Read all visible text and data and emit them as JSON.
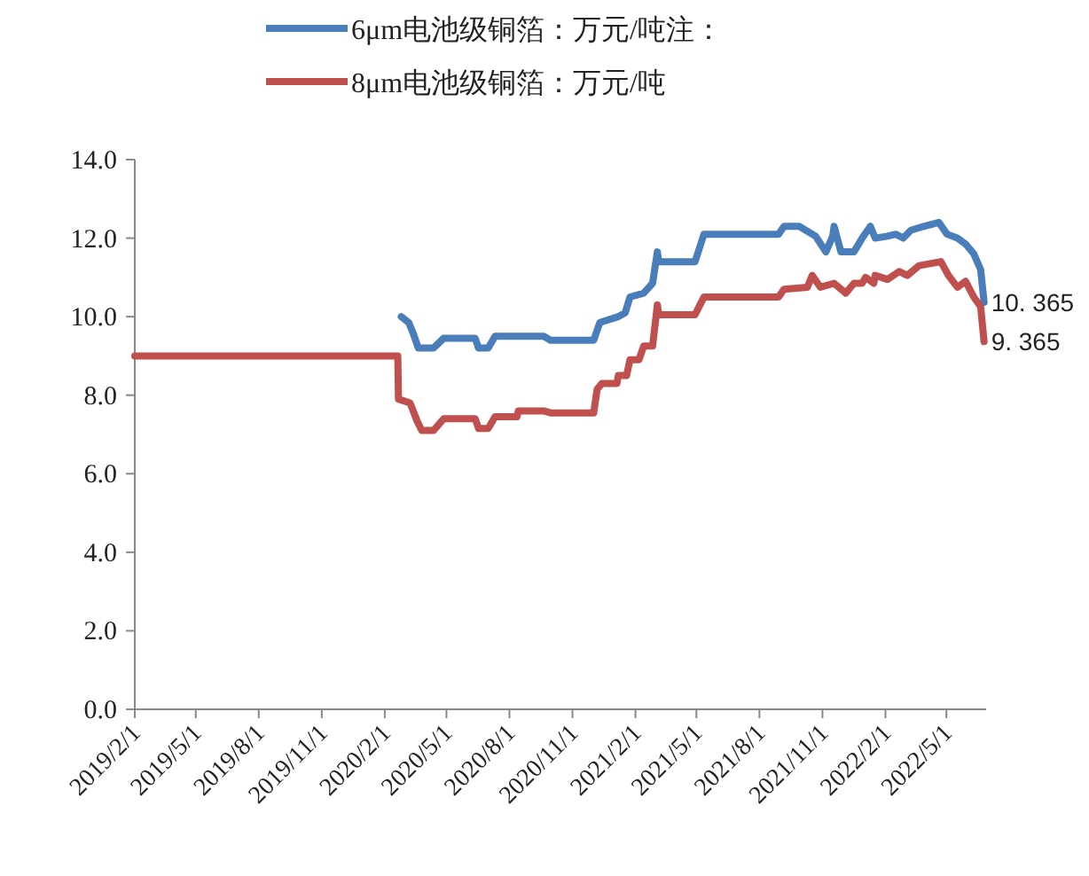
{
  "chart_data": {
    "type": "line",
    "legend": "top",
    "grid": false,
    "line_style": "solid",
    "marker": "none",
    "xlim": [
      "2019-02-01",
      "2022-06-28"
    ],
    "xticks": [
      {
        "value": "2019-02-01",
        "label": "2019/2/1"
      },
      {
        "value": "2019-05-01",
        "label": "2019/5/1"
      },
      {
        "value": "2019-08-01",
        "label": "2019/8/1"
      },
      {
        "value": "2019-11-01",
        "label": "2019/11/1"
      },
      {
        "value": "2020-02-01",
        "label": "2020/2/1"
      },
      {
        "value": "2020-05-01",
        "label": "2020/5/1"
      },
      {
        "value": "2020-08-01",
        "label": "2020/8/1"
      },
      {
        "value": "2020-11-01",
        "label": "2020/11/1"
      },
      {
        "value": "2021-02-01",
        "label": "2021/2/1"
      },
      {
        "value": "2021-05-01",
        "label": "2021/5/1"
      },
      {
        "value": "2021-08-01",
        "label": "2021/8/1"
      },
      {
        "value": "2021-11-01",
        "label": "2021/11/1"
      },
      {
        "value": "2022-02-01",
        "label": "2022/2/1"
      },
      {
        "value": "2022-05-01",
        "label": "2022/5/1"
      }
    ],
    "ylim": [
      0,
      14
    ],
    "yticks": [
      {
        "value": 0,
        "label": "0.0"
      },
      {
        "value": 2,
        "label": "2.0"
      },
      {
        "value": 4,
        "label": "4.0"
      },
      {
        "value": 6,
        "label": "6.0"
      },
      {
        "value": 8,
        "label": "8.0"
      },
      {
        "value": 10,
        "label": "10.0"
      },
      {
        "value": 12,
        "label": "12.0"
      },
      {
        "value": 14,
        "label": "14.0"
      }
    ],
    "series": [
      {
        "name": "6μm电池级铜箔：万元/吨注：",
        "color": "#4a7ebb",
        "x": [
          "2020-02-25",
          "2020-03-07",
          "2020-03-14",
          "2020-03-21",
          "2020-04-12",
          "2020-04-27",
          "2020-06-12",
          "2020-06-17",
          "2020-07-01",
          "2020-07-11",
          "2020-09-20",
          "2020-09-30",
          "2020-12-02",
          "2020-12-11",
          "2021-01-07",
          "2021-01-17",
          "2021-01-24",
          "2021-02-13",
          "2021-02-26",
          "2021-03-05",
          "2021-03-07",
          "2021-04-29",
          "2021-05-12",
          "2021-08-29",
          "2021-09-06",
          "2021-09-28",
          "2021-10-22",
          "2021-11-06",
          "2021-11-16",
          "2021-11-18",
          "2021-11-28",
          "2021-12-17",
          "2021-12-29",
          "2022-01-10",
          "2022-01-17",
          "2022-02-04",
          "2022-02-16",
          "2022-02-27",
          "2022-03-10",
          "2022-03-29",
          "2022-04-20",
          "2022-05-02",
          "2022-05-17",
          "2022-05-29",
          "2022-06-10",
          "2022-06-20",
          "2022-06-25"
        ],
        "values": [
          10.0,
          9.85,
          9.55,
          9.2,
          9.2,
          9.45,
          9.45,
          9.2,
          9.2,
          9.5,
          9.5,
          9.4,
          9.4,
          9.85,
          10.0,
          10.1,
          10.5,
          10.6,
          10.85,
          11.65,
          11.4,
          11.4,
          12.1,
          12.1,
          12.3,
          12.3,
          12.05,
          11.65,
          12.05,
          12.3,
          11.65,
          11.65,
          12.0,
          12.3,
          12.0,
          12.05,
          12.1,
          12.0,
          12.2,
          12.3,
          12.4,
          12.1,
          12.0,
          11.85,
          11.6,
          11.2,
          10.365
        ],
        "value_labels": [
          null,
          null,
          null,
          null,
          null,
          null,
          null,
          null,
          null,
          null,
          null,
          null,
          null,
          null,
          null,
          null,
          null,
          null,
          null,
          null,
          null,
          null,
          null,
          null,
          null,
          null,
          null,
          null,
          null,
          null,
          null,
          null,
          null,
          null,
          null,
          null,
          null,
          null,
          null,
          null,
          null,
          null,
          null,
          null,
          null,
          null,
          "10. 365"
        ]
      },
      {
        "name": "8μm电池级铜箔：万元/吨",
        "color": "#c0504d",
        "x": [
          "2019-02-01",
          "2020-02-20",
          "2020-02-21",
          "2020-03-09",
          "2020-03-19",
          "2020-03-26",
          "2020-04-12",
          "2020-04-27",
          "2020-06-12",
          "2020-06-17",
          "2020-07-01",
          "2020-07-11",
          "2020-08-12",
          "2020-08-14",
          "2020-09-20",
          "2020-09-30",
          "2020-12-02",
          "2020-12-07",
          "2020-12-14",
          "2021-01-05",
          "2021-01-07",
          "2021-01-19",
          "2021-01-24",
          "2021-02-06",
          "2021-02-13",
          "2021-02-26",
          "2021-03-05",
          "2021-03-07",
          "2021-04-29",
          "2021-05-12",
          "2021-08-29",
          "2021-09-06",
          "2021-10-10",
          "2021-10-17",
          "2021-10-29",
          "2021-11-18",
          "2021-12-05",
          "2021-12-17",
          "2021-12-29",
          "2022-01-03",
          "2022-01-15",
          "2022-01-17",
          "2022-02-04",
          "2022-02-21",
          "2022-03-05",
          "2022-03-22",
          "2022-04-23",
          "2022-05-04",
          "2022-05-17",
          "2022-05-29",
          "2022-06-10",
          "2022-06-20",
          "2022-06-25"
        ],
        "values": [
          9.0,
          9.0,
          7.9,
          7.8,
          7.35,
          7.1,
          7.1,
          7.4,
          7.4,
          7.15,
          7.15,
          7.45,
          7.45,
          7.6,
          7.6,
          7.55,
          7.55,
          8.15,
          8.3,
          8.3,
          8.5,
          8.5,
          8.9,
          8.9,
          9.25,
          9.25,
          10.3,
          10.05,
          10.05,
          10.5,
          10.5,
          10.7,
          10.75,
          11.05,
          10.75,
          10.85,
          10.6,
          10.85,
          10.85,
          11.0,
          10.85,
          11.05,
          10.95,
          11.15,
          11.05,
          11.3,
          11.4,
          11.05,
          10.75,
          10.9,
          10.5,
          10.25,
          9.365
        ],
        "value_labels": [
          null,
          null,
          null,
          null,
          null,
          null,
          null,
          null,
          null,
          null,
          null,
          null,
          null,
          null,
          null,
          null,
          null,
          null,
          null,
          null,
          null,
          null,
          null,
          null,
          null,
          null,
          null,
          null,
          null,
          null,
          null,
          null,
          null,
          null,
          null,
          null,
          null,
          null,
          null,
          null,
          null,
          null,
          null,
          null,
          null,
          null,
          null,
          null,
          null,
          null,
          null,
          null,
          "9. 365"
        ]
      }
    ]
  }
}
